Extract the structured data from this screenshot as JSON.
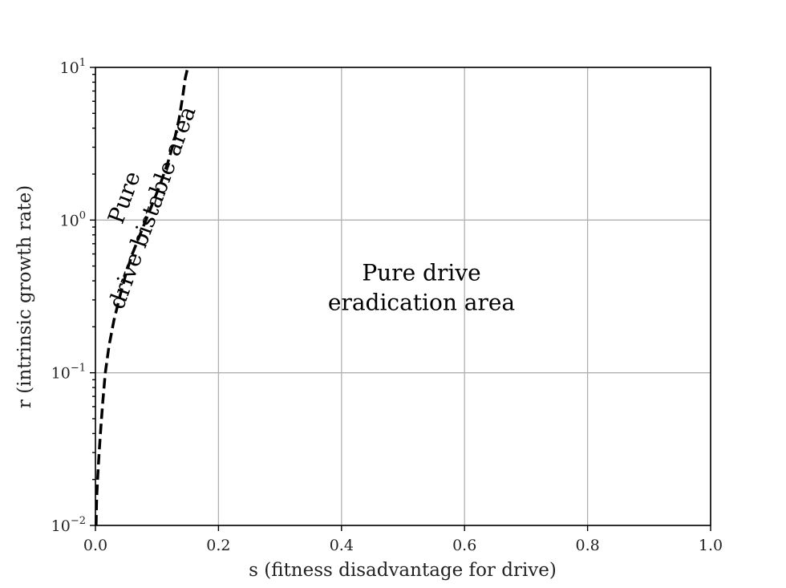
{
  "chart_data": {
    "type": "line",
    "xlabel": "s (fitness disadvantage for drive)",
    "ylabel": "r (intrinsic growth rate)",
    "xlim": [
      0.0,
      1.0
    ],
    "ylim": [
      0.01,
      10
    ],
    "y_scale": "log",
    "grid": true,
    "x_ticks": [
      {
        "value": 0.0,
        "label": "0.0"
      },
      {
        "value": 0.2,
        "label": "0.2"
      },
      {
        "value": 0.4,
        "label": "0.4"
      },
      {
        "value": 0.6,
        "label": "0.6"
      },
      {
        "value": 0.8,
        "label": "0.8"
      },
      {
        "value": 1.0,
        "label": "1.0"
      }
    ],
    "y_ticks": [
      {
        "value": 0.01,
        "base": "10",
        "exp": "−2"
      },
      {
        "value": 0.1,
        "base": "10",
        "exp": "−1"
      },
      {
        "value": 1,
        "base": "10",
        "exp": "0"
      },
      {
        "value": 10,
        "base": "10",
        "exp": "1"
      }
    ],
    "series": [
      {
        "style": "dashed",
        "color": "#000000",
        "points": [
          [
            0.001,
            0.01
          ],
          [
            0.002,
            0.015
          ],
          [
            0.004,
            0.022
          ],
          [
            0.006,
            0.03
          ],
          [
            0.009,
            0.045
          ],
          [
            0.012,
            0.065
          ],
          [
            0.016,
            0.1
          ],
          [
            0.022,
            0.15
          ],
          [
            0.03,
            0.22
          ],
          [
            0.04,
            0.32
          ],
          [
            0.05,
            0.45
          ],
          [
            0.06,
            0.6
          ],
          [
            0.075,
            0.85
          ],
          [
            0.09,
            1.2
          ],
          [
            0.105,
            1.7
          ],
          [
            0.118,
            2.4
          ],
          [
            0.128,
            3.3
          ],
          [
            0.136,
            4.6
          ],
          [
            0.142,
            6.5
          ],
          [
            0.146,
            8.5
          ],
          [
            0.15,
            10
          ]
        ]
      }
    ],
    "annotations": [
      {
        "lines": [
          "Pure drive",
          "eradication area"
        ],
        "x": 0.53,
        "y": 0.36,
        "rotation": 0
      },
      {
        "lines": [
          "Pure",
          "drive bistable area"
        ],
        "x": 0.07,
        "y": 1.3,
        "rotation": -70
      }
    ]
  }
}
